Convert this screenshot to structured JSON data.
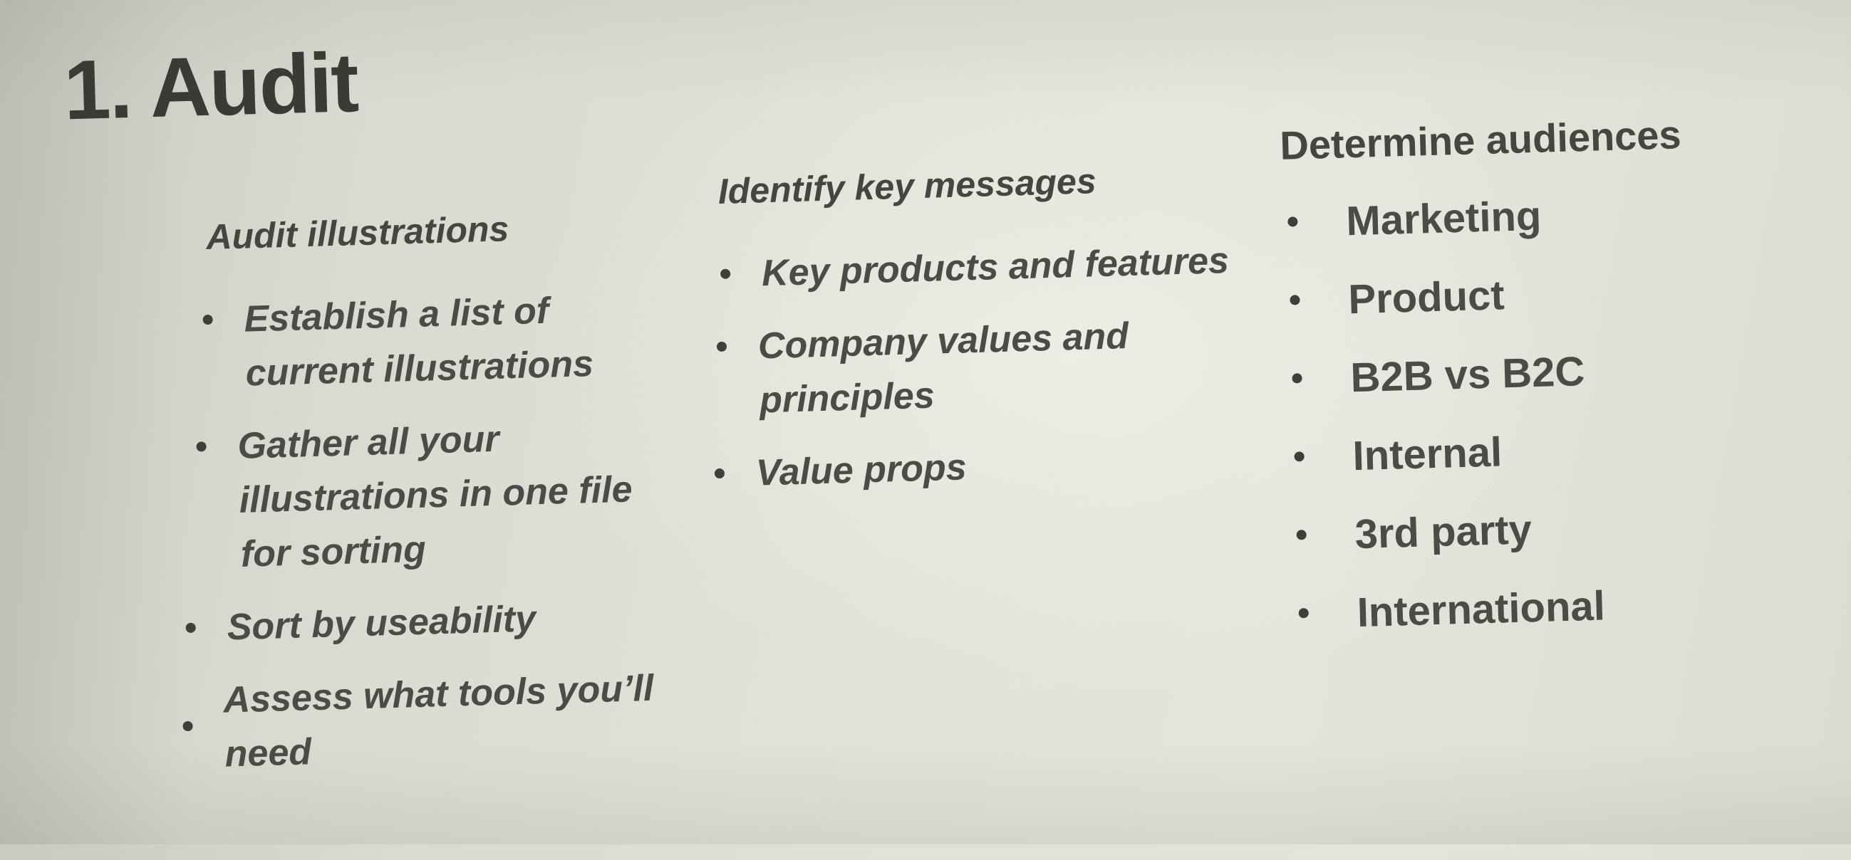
{
  "slide": {
    "title": "1. Audit",
    "columns": [
      {
        "heading": "Audit illustrations",
        "items": [
          "Establish a list of current illustrations",
          "Gather all your illustrations in one file for sorting",
          "Sort by useability",
          "Assess what tools you’ll need"
        ]
      },
      {
        "heading": "Identify key messages",
        "items": [
          "Key products and features",
          "Company values and principles",
          "Value props"
        ]
      },
      {
        "heading": "Determine audiences",
        "items": [
          "Marketing",
          "Product",
          "B2B vs B2C",
          "Internal",
          "3rd party",
          "International"
        ]
      }
    ]
  }
}
